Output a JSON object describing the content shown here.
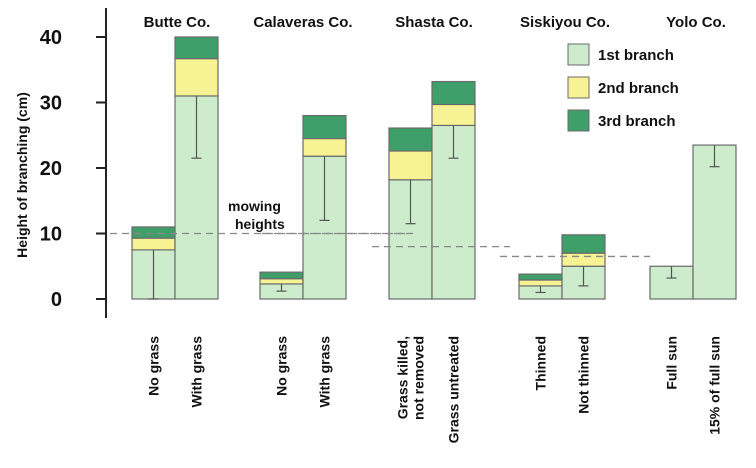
{
  "chart_data": {
    "type": "bar",
    "stacked": true,
    "ylabel": "Height of branching (cm)",
    "ylim": [
      0,
      42
    ],
    "yticks": [
      0,
      10,
      20,
      30,
      40
    ],
    "counties": [
      "Butte Co.",
      "Calaveras Co.",
      "Shasta Co.",
      "Siskiyou Co.",
      "Yolo Co."
    ],
    "categories": [
      "No grass",
      "With grass",
      "No grass",
      "With grass",
      "Grass killed, not removed",
      "Grass untreated",
      "Thinned",
      "Not thinned",
      "Full sun",
      "15% of full sun"
    ],
    "category_lines": [
      [
        "No grass"
      ],
      [
        "With grass"
      ],
      [
        "No grass"
      ],
      [
        "With grass"
      ],
      [
        "Grass killed,",
        "not removed"
      ],
      [
        "Grass untreated"
      ],
      [
        "Thinned"
      ],
      [
        "Not thinned"
      ],
      [
        "Full sun"
      ],
      [
        "15% of full sun"
      ]
    ],
    "series": [
      {
        "name": "1st branch",
        "values": [
          7.5,
          31,
          2.3,
          21.8,
          18.2,
          26.5,
          2.0,
          5.0,
          5.0,
          23.5
        ],
        "error_low": [
          0,
          21.5,
          1.2,
          12,
          11.5,
          21.5,
          1.0,
          2.0,
          3.2,
          20.2
        ],
        "error_high": [
          7.5,
          31,
          2.3,
          21.8,
          18.2,
          26.5,
          2.0,
          5.0,
          5.0,
          23.5
        ]
      },
      {
        "name": "2nd branch",
        "values": [
          1.8,
          5.7,
          0.8,
          2.7,
          4.4,
          3.2,
          0.9,
          2.0,
          0,
          0
        ]
      },
      {
        "name": "3rd branch",
        "values": [
          1.7,
          3.3,
          1.0,
          3.5,
          3.5,
          3.5,
          0.9,
          2.8,
          0,
          0
        ]
      }
    ],
    "annotations": [
      {
        "text": [
          "mowing",
          "heights"
        ]
      }
    ],
    "mowing_heights": [
      10,
      10,
      8,
      6.5
    ],
    "colors": {
      "1st branch": "#cdeccc",
      "2nd branch": "#f7f293",
      "3rd branch": "#3f9f6a"
    },
    "legend_position": "top-right",
    "grid": false
  }
}
